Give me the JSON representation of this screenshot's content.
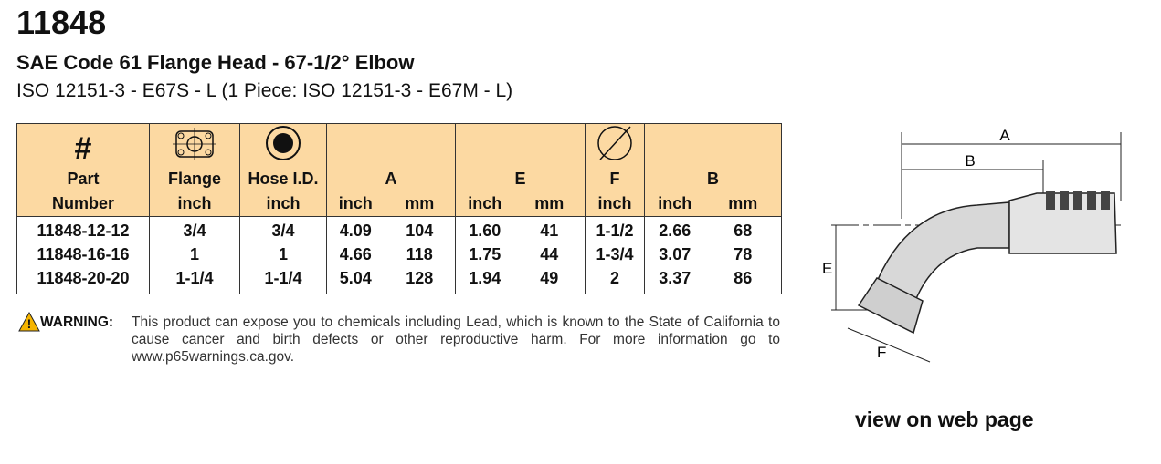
{
  "header": {
    "title": "11848",
    "subtitle": "SAE Code 61 Flange Head - 67-1/2° Elbow",
    "standard": "ISO 12151-3 - E67S - L (1 Piece: ISO 12151-3 - E67M - L)"
  },
  "table": {
    "columns": [
      {
        "symbol": "#",
        "label": "Part",
        "unit": "Number"
      },
      {
        "label": "Flange",
        "unit": "inch"
      },
      {
        "label": "Hose I.D.",
        "unit": "inch"
      },
      {
        "label": "A",
        "units": [
          "inch",
          "mm"
        ]
      },
      {
        "label": "E",
        "units": [
          "inch",
          "mm"
        ]
      },
      {
        "label": "F",
        "unit": "inch"
      },
      {
        "label": "B",
        "units": [
          "inch",
          "mm"
        ]
      }
    ],
    "rows": [
      [
        "11848-12-12",
        "3/4",
        "3/4",
        "4.09",
        "104",
        "1.60",
        "41",
        "1-1/2",
        "2.66",
        "68"
      ],
      [
        "11848-16-16",
        "1",
        "1",
        "4.66",
        "118",
        "1.75",
        "44",
        "1-3/4",
        "3.07",
        "78"
      ],
      [
        "11848-20-20",
        "1-1/4",
        "1-1/4",
        "5.04",
        "128",
        "1.94",
        "49",
        "2",
        "3.37",
        "86"
      ]
    ]
  },
  "warning": {
    "label": "WARNING:",
    "text": "This product can expose you to chemicals including Lead, which is known to the State of California to cause cancer and birth defects or other reproductive harm.  For more information go to www.p65warnings.ca.gov."
  },
  "diagram": {
    "labels": [
      "A",
      "B",
      "E",
      "F"
    ]
  },
  "link": "view on web page"
}
